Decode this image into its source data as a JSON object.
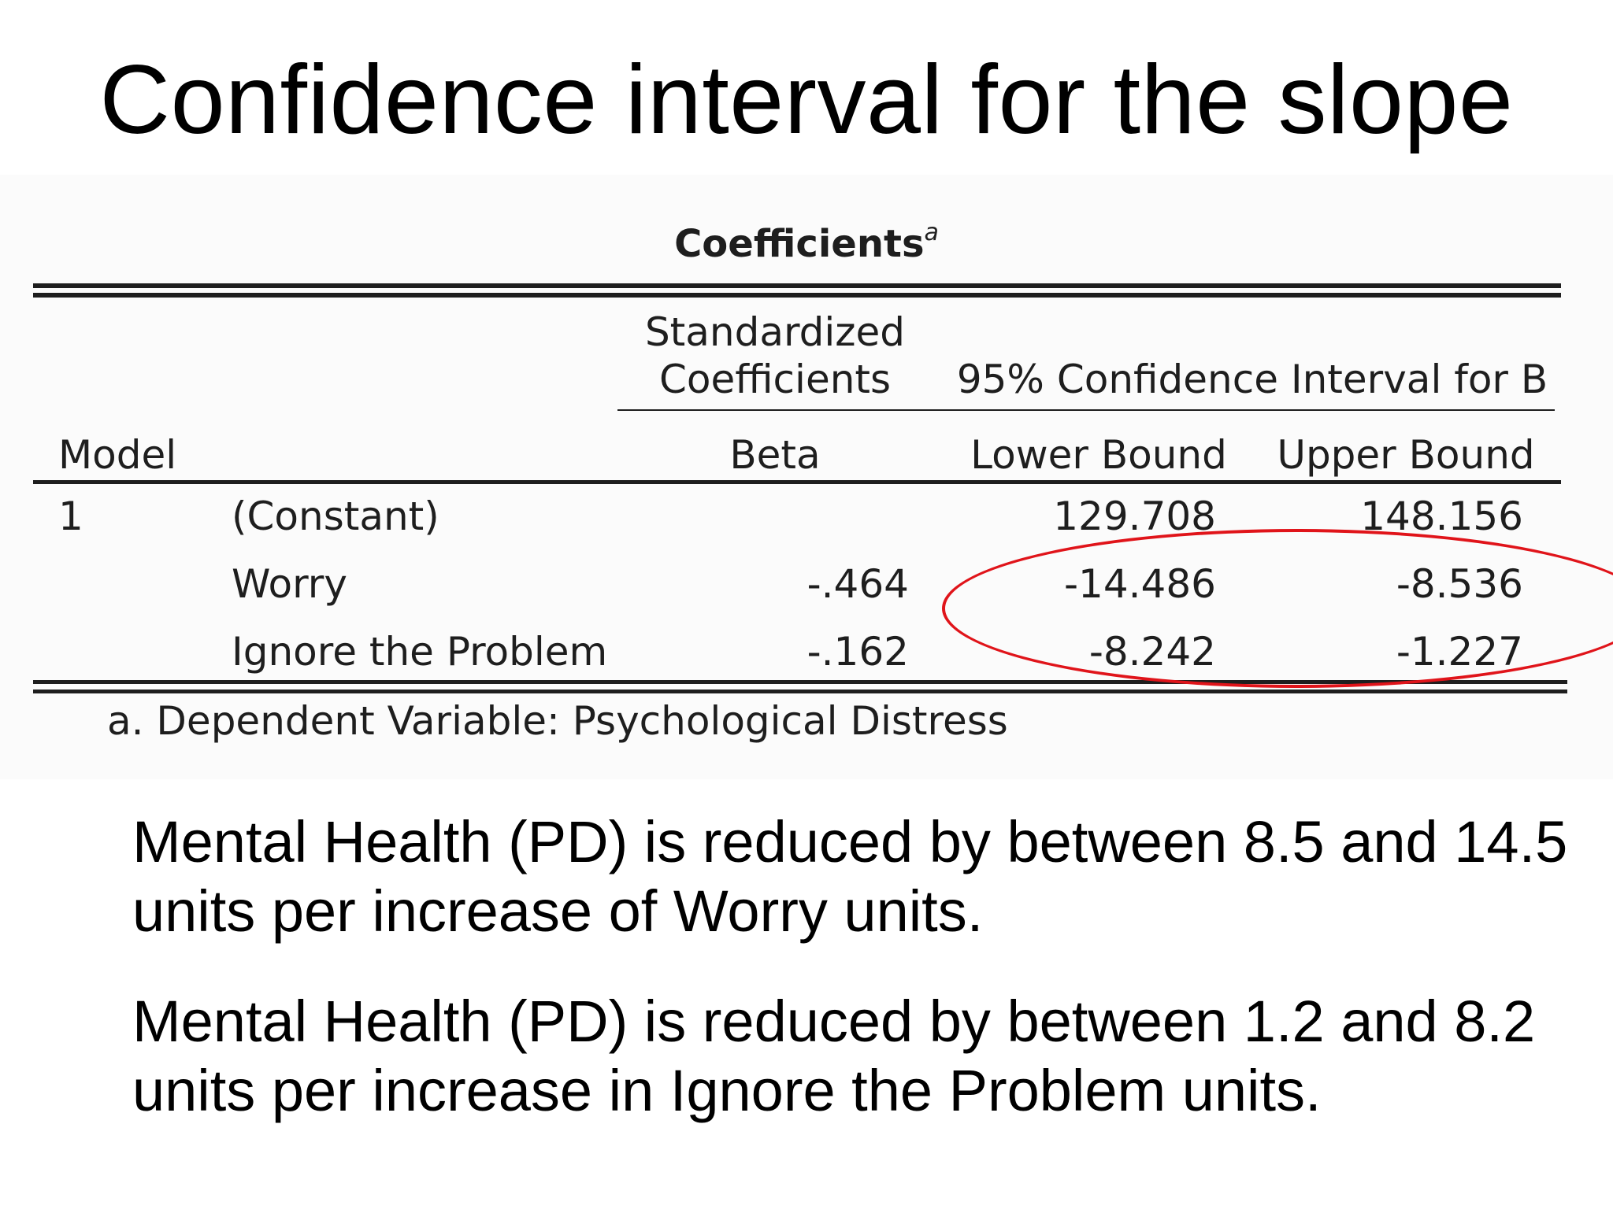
{
  "slide": {
    "title": "Confidence interval for the slope",
    "bullets": [
      "Mental Health (PD) is reduced by between 8.5 and 14.5 units per increase of Worry units.",
      "Mental Health (PD) is reduced by between 1.2 and 8.2 units per increase in Ignore the Problem units."
    ]
  },
  "table": {
    "title": "Coefficients",
    "title_superscript": "a",
    "group_headers": {
      "standardized_line1": "Standardized",
      "standardized_line2": "Coefficients",
      "ci": "95% Confidence Interval for B"
    },
    "columns": {
      "model": "Model",
      "beta": "Beta",
      "lower": "Lower Bound",
      "upper": "Upper Bound"
    },
    "model_number": "1",
    "rows": [
      {
        "label": "(Constant)",
        "beta": "",
        "lower": "129.708",
        "upper": "148.156"
      },
      {
        "label": "Worry",
        "beta": "-.464",
        "lower": "-14.486",
        "upper": "-8.536"
      },
      {
        "label": "Ignore the Problem",
        "beta": "-.162",
        "lower": "-8.242",
        "upper": "-1.227"
      }
    ],
    "footnote": "a. Dependent Variable: Psychological Distress",
    "highlight_color": "#e0141a"
  }
}
